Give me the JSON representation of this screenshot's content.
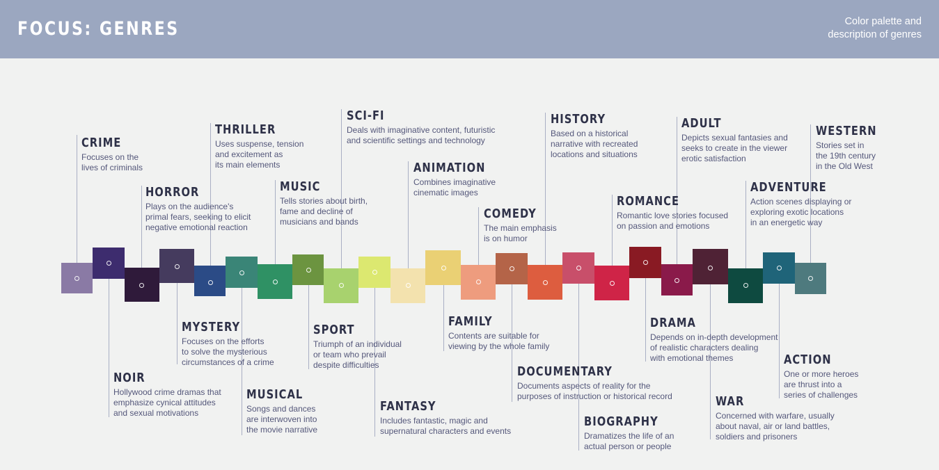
{
  "header": {
    "title": "FOCUS: GENRES",
    "subtitle_line1": "Color palette and",
    "subtitle_line2": "description of genres"
  },
  "genres": [
    {
      "id": "crime",
      "name": "CRIME",
      "desc": "Focuses on the\nlives of criminals",
      "color": "#8a7aa5"
    },
    {
      "id": "noir",
      "name": "NOIR",
      "desc": "Hollywood crime dramas that\nemphasize cynical attitudes\nand sexual motivations",
      "color": "#3d2c6e"
    },
    {
      "id": "horror",
      "name": "HORROR",
      "desc": "Plays on the audience's\nprimal fears, seeking to elicit\nnegative emotional reaction",
      "color": "#2f1a3a"
    },
    {
      "id": "mystery",
      "name": "MYSTERY",
      "desc": "Focuses on the efforts\nto solve the mysterious\ncircumstances of a crime",
      "color": "#453b5e"
    },
    {
      "id": "thriller",
      "name": "THRILLER",
      "desc": "Uses suspense, tension\nand excitement as\nits main elements",
      "color": "#2b4b86"
    },
    {
      "id": "musical",
      "name": "MUSICAL",
      "desc": "Songs and dances\nare interwoven into\nthe movie narrative",
      "color": "#3a8577"
    },
    {
      "id": "music",
      "name": "MUSIC",
      "desc": "Tells stories about birth,\nfame and decline of\nmusicians and bands",
      "color": "#2f9164"
    },
    {
      "id": "sport",
      "name": "SPORT",
      "desc": "Triumph of an individual\nor team who prevail\ndespite difficulties",
      "color": "#6c9440"
    },
    {
      "id": "scifi",
      "name": "SCI-FI",
      "desc": "Deals with imaginative content, futuristic\nand scientific settings and technology",
      "color": "#a8d26e"
    },
    {
      "id": "fantasy",
      "name": "FANTASY",
      "desc": "Includes fantastic, magic and\nsupernatural characters and events",
      "color": "#dce870"
    },
    {
      "id": "animation",
      "name": "ANIMATION",
      "desc": "Combines imaginative\ncinematic images",
      "color": "#f3e2ae"
    },
    {
      "id": "family",
      "name": "FAMILY",
      "desc": "Contents are suitable for\nviewing by the whole family",
      "color": "#ead074"
    },
    {
      "id": "comedy",
      "name": "COMEDY",
      "desc": "The main emphasis\nis on humor",
      "color": "#ee9c7e"
    },
    {
      "id": "documentary",
      "name": "DOCUMENTARY",
      "desc": "Documents aspects of reality for the\npurposes of instruction or historical record",
      "color": "#b46448"
    },
    {
      "id": "history",
      "name": "HISTORY",
      "desc": "Based on a historical\nnarrative with recreated\nlocations and situations",
      "color": "#dd5d3f"
    },
    {
      "id": "biography",
      "name": "BIOGRAPHY",
      "desc": "Dramatizes the life of an\nactual person or people",
      "color": "#c84f6a"
    },
    {
      "id": "romance",
      "name": "ROMANCE",
      "desc": "Romantic love stories focused\non passion and emotions",
      "color": "#cf2447"
    },
    {
      "id": "drama",
      "name": "DRAMA",
      "desc": "Depends on in-depth development\nof realistic characters dealing\nwith emotional themes",
      "color": "#891a23"
    },
    {
      "id": "adult",
      "name": "ADULT",
      "desc": "Depicts sexual fantasies and\nseeks to create in the viewer\nerotic satisfaction",
      "color": "#8a1a4a"
    },
    {
      "id": "war",
      "name": "WAR",
      "desc": "Concerned with warfare, usually\nabout naval, air or land battles,\nsoldiers and prisoners",
      "color": "#4f2235"
    },
    {
      "id": "adventure",
      "name": "ADVENTURE",
      "desc": "Action scenes displaying or\nexploring exotic locations\nin an energetic way",
      "color": "#0e4a40"
    },
    {
      "id": "action",
      "name": "ACTION",
      "desc": "One or more heroes\nare thrust into a\nseries of challenges",
      "color": "#1f6479"
    },
    {
      "id": "western",
      "name": "WESTERN",
      "desc": "Stories set in\nthe 19th century\nin the Old West",
      "color": "#4e7a7e"
    }
  ]
}
